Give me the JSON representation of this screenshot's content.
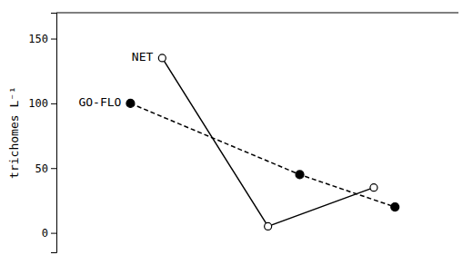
{
  "chart_data": {
    "type": "line",
    "ylabel": "trichomes L⁻¹",
    "series": [
      {
        "name": "NET",
        "x": [
          1,
          2,
          3
        ],
        "values": [
          135,
          5,
          35
        ],
        "color": "black",
        "line_style": "solid",
        "marker": "open-circle"
      },
      {
        "name": "GO-FLO",
        "x": [
          0.7,
          2.3,
          3.2
        ],
        "values": [
          100,
          45,
          20
        ],
        "color": "black",
        "line_style": "dashed",
        "marker": "filled-circle"
      }
    ],
    "xlim": [
      0.0,
      3.8
    ],
    "ylim": [
      -15,
      170
    ],
    "yticks": [
      0,
      50,
      100,
      150
    ],
    "tick_labels": "y",
    "grid": false
  }
}
